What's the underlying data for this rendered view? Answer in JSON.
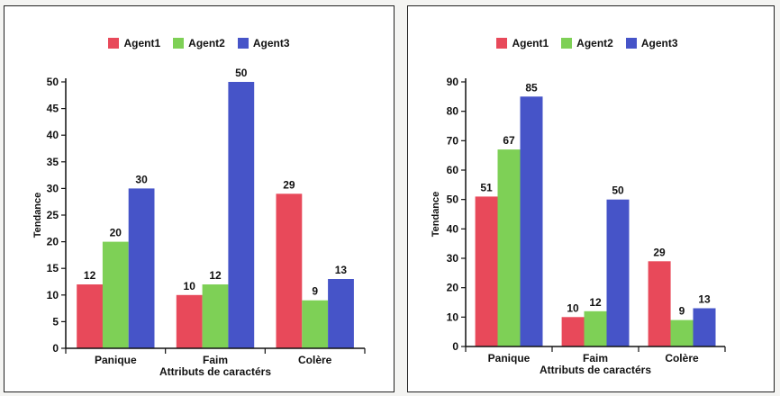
{
  "colors": {
    "Agent1": "#e8495a",
    "Agent2": "#7ed056",
    "Agent3": "#4654c8"
  },
  "chart_data": [
    {
      "type": "bar",
      "categories": [
        "Panique",
        "Faim",
        "Colère"
      ],
      "series": [
        {
          "name": "Agent1",
          "values": [
            12,
            10,
            29
          ]
        },
        {
          "name": "Agent2",
          "values": [
            20,
            12,
            9
          ]
        },
        {
          "name": "Agent3",
          "values": [
            30,
            50,
            13
          ]
        }
      ],
      "xlabel": "Attributs de caractérs",
      "ylabel": "Tendance",
      "ylim": [
        0,
        50
      ],
      "yticks": [
        0,
        5,
        10,
        15,
        20,
        25,
        30,
        35,
        40,
        45,
        50
      ],
      "legend": "top",
      "grid": false
    },
    {
      "type": "bar",
      "categories": [
        "Panique",
        "Faim",
        "Colère"
      ],
      "series": [
        {
          "name": "Agent1",
          "values": [
            51,
            10,
            29
          ]
        },
        {
          "name": "Agent2",
          "values": [
            67,
            12,
            9
          ]
        },
        {
          "name": "Agent3",
          "values": [
            85,
            50,
            13
          ]
        }
      ],
      "xlabel": "Attributs de caractérs",
      "ylabel": "Tendance",
      "ylim": [
        0,
        90
      ],
      "yticks": [
        0,
        10,
        20,
        30,
        40,
        50,
        60,
        70,
        80,
        90
      ],
      "legend": "top",
      "grid": false
    }
  ]
}
